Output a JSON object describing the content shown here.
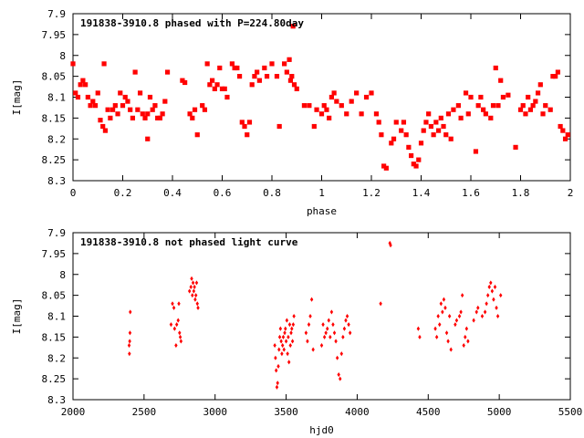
{
  "chart_data": [
    {
      "type": "scatter",
      "title": "191838-3910.8 phased with P=224.80day",
      "xlabel": "phase",
      "ylabel": "I[mag]",
      "xlim": [
        0,
        2
      ],
      "ylim": [
        7.9,
        8.3
      ],
      "y_inverted": true,
      "xticks": [
        "0",
        "0.2",
        "0.4",
        "0.6",
        "0.8",
        "1",
        "1.2",
        "1.4",
        "1.6",
        "1.8",
        "2"
      ],
      "yticks": [
        "7.9",
        "7.95",
        "8",
        "8.05",
        "8.1",
        "8.15",
        "8.2",
        "8.25",
        "8.3"
      ],
      "marker_color": "#ff0000",
      "grid": false,
      "points": [
        [
          0.0,
          8.02
        ],
        [
          0.01,
          8.09
        ],
        [
          0.02,
          8.1
        ],
        [
          0.03,
          8.07
        ],
        [
          0.04,
          8.06
        ],
        [
          0.05,
          8.07
        ],
        [
          0.06,
          8.1
        ],
        [
          0.07,
          8.12
        ],
        [
          0.08,
          8.11
        ],
        [
          0.09,
          8.12
        ],
        [
          0.1,
          8.09
        ],
        [
          0.11,
          8.155
        ],
        [
          0.12,
          8.17
        ],
        [
          0.125,
          8.02
        ],
        [
          0.13,
          8.18
        ],
        [
          0.14,
          8.13
        ],
        [
          0.15,
          8.15
        ],
        [
          0.16,
          8.13
        ],
        [
          0.17,
          8.12
        ],
        [
          0.18,
          8.14
        ],
        [
          0.19,
          8.09
        ],
        [
          0.2,
          8.12
        ],
        [
          0.21,
          8.1
        ],
        [
          0.22,
          8.11
        ],
        [
          0.23,
          8.13
        ],
        [
          0.24,
          8.15
        ],
        [
          0.25,
          8.04
        ],
        [
          0.26,
          8.13
        ],
        [
          0.27,
          8.09
        ],
        [
          0.28,
          8.14
        ],
        [
          0.29,
          8.15
        ],
        [
          0.3,
          8.14
        ],
        [
          0.3,
          8.2
        ],
        [
          0.31,
          8.1
        ],
        [
          0.32,
          8.13
        ],
        [
          0.33,
          8.12
        ],
        [
          0.34,
          8.15
        ],
        [
          0.35,
          8.15
        ],
        [
          0.36,
          8.14
        ],
        [
          0.37,
          8.11
        ],
        [
          0.38,
          8.04
        ],
        [
          0.44,
          8.06
        ],
        [
          0.45,
          8.065
        ],
        [
          0.47,
          8.14
        ],
        [
          0.48,
          8.15
        ],
        [
          0.49,
          8.13
        ],
        [
          0.5,
          8.19
        ],
        [
          0.52,
          8.12
        ],
        [
          0.53,
          8.13
        ],
        [
          0.54,
          8.02
        ],
        [
          0.55,
          8.07
        ],
        [
          0.56,
          8.06
        ],
        [
          0.57,
          8.08
        ],
        [
          0.58,
          8.07
        ],
        [
          0.59,
          8.03
        ],
        [
          0.6,
          8.08
        ],
        [
          0.61,
          8.08
        ],
        [
          0.62,
          8.1
        ],
        [
          0.64,
          8.02
        ],
        [
          0.65,
          8.03
        ],
        [
          0.66,
          8.03
        ],
        [
          0.67,
          8.05
        ],
        [
          0.68,
          8.16
        ],
        [
          0.69,
          8.17
        ],
        [
          0.7,
          8.19
        ],
        [
          0.71,
          8.16
        ],
        [
          0.72,
          8.07
        ],
        [
          0.73,
          8.05
        ],
        [
          0.74,
          8.04
        ],
        [
          0.75,
          8.06
        ],
        [
          0.77,
          8.03
        ],
        [
          0.78,
          8.05
        ],
        [
          0.8,
          8.02
        ],
        [
          0.82,
          8.05
        ],
        [
          0.83,
          8.17
        ],
        [
          0.85,
          8.02
        ],
        [
          0.86,
          8.04
        ],
        [
          0.87,
          8.01
        ],
        [
          0.875,
          8.06
        ],
        [
          0.88,
          8.05
        ],
        [
          0.885,
          7.93
        ],
        [
          0.89,
          8.07
        ],
        [
          0.9,
          8.08
        ],
        [
          0.93,
          8.12
        ],
        [
          0.95,
          8.12
        ],
        [
          0.97,
          8.17
        ],
        [
          0.98,
          8.13
        ],
        [
          1.0,
          8.14
        ],
        [
          1.01,
          8.12
        ],
        [
          1.02,
          8.13
        ],
        [
          1.03,
          8.15
        ],
        [
          1.04,
          8.1
        ],
        [
          1.05,
          8.09
        ],
        [
          1.06,
          8.11
        ],
        [
          1.08,
          8.12
        ],
        [
          1.1,
          8.14
        ],
        [
          1.12,
          8.11
        ],
        [
          1.14,
          8.09
        ],
        [
          1.16,
          8.14
        ],
        [
          1.18,
          8.1
        ],
        [
          1.2,
          8.09
        ],
        [
          1.22,
          8.14
        ],
        [
          1.23,
          8.16
        ],
        [
          1.24,
          8.19
        ],
        [
          1.25,
          8.265
        ],
        [
          1.26,
          8.27
        ],
        [
          1.28,
          8.21
        ],
        [
          1.29,
          8.2
        ],
        [
          1.3,
          8.16
        ],
        [
          1.32,
          8.18
        ],
        [
          1.33,
          8.16
        ],
        [
          1.34,
          8.19
        ],
        [
          1.35,
          8.22
        ],
        [
          1.36,
          8.24
        ],
        [
          1.37,
          8.26
        ],
        [
          1.38,
          8.265
        ],
        [
          1.39,
          8.25
        ],
        [
          1.4,
          8.21
        ],
        [
          1.41,
          8.18
        ],
        [
          1.42,
          8.16
        ],
        [
          1.43,
          8.14
        ],
        [
          1.44,
          8.17
        ],
        [
          1.45,
          8.19
        ],
        [
          1.46,
          8.16
        ],
        [
          1.47,
          8.18
        ],
        [
          1.48,
          8.15
        ],
        [
          1.49,
          8.17
        ],
        [
          1.5,
          8.19
        ],
        [
          1.51,
          8.14
        ],
        [
          1.52,
          8.2
        ],
        [
          1.53,
          8.13
        ],
        [
          1.55,
          8.12
        ],
        [
          1.56,
          8.15
        ],
        [
          1.58,
          8.09
        ],
        [
          1.59,
          8.14
        ],
        [
          1.6,
          8.1
        ],
        [
          1.62,
          8.23
        ],
        [
          1.63,
          8.12
        ],
        [
          1.64,
          8.1
        ],
        [
          1.65,
          8.13
        ],
        [
          1.66,
          8.14
        ],
        [
          1.68,
          8.15
        ],
        [
          1.69,
          8.12
        ],
        [
          1.7,
          8.03
        ],
        [
          1.71,
          8.12
        ],
        [
          1.72,
          8.06
        ],
        [
          1.73,
          8.1
        ],
        [
          1.75,
          8.095
        ],
        [
          1.78,
          8.22
        ],
        [
          1.8,
          8.13
        ],
        [
          1.81,
          8.12
        ],
        [
          1.82,
          8.14
        ],
        [
          1.83,
          8.1
        ],
        [
          1.84,
          8.13
        ],
        [
          1.85,
          8.12
        ],
        [
          1.86,
          8.11
        ],
        [
          1.87,
          8.09
        ],
        [
          1.88,
          8.07
        ],
        [
          1.89,
          8.14
        ],
        [
          1.9,
          8.12
        ],
        [
          1.92,
          8.13
        ],
        [
          1.93,
          8.05
        ],
        [
          1.94,
          8.05
        ],
        [
          1.95,
          8.04
        ],
        [
          1.96,
          8.17
        ],
        [
          1.97,
          8.18
        ],
        [
          1.98,
          8.2
        ],
        [
          1.99,
          8.19
        ]
      ]
    },
    {
      "type": "scatter",
      "title": "191838-3910.8 not phased light curve",
      "xlabel": "hjd0",
      "ylabel": "I[mag]",
      "xlim": [
        2000,
        5500
      ],
      "ylim": [
        7.9,
        8.3
      ],
      "y_inverted": true,
      "xticks": [
        "2000",
        "2500",
        "3000",
        "3500",
        "4000",
        "4500",
        "5000",
        "5500"
      ],
      "yticks": [
        "7.9",
        "7.95",
        "8",
        "8.05",
        "8.1",
        "8.15",
        "8.2",
        "8.25",
        "8.3"
      ],
      "marker_color": "#ff0000",
      "grid": false,
      "points": [
        [
          2395,
          8.17
        ],
        [
          2397,
          8.19
        ],
        [
          2399,
          8.16
        ],
        [
          2401,
          8.14
        ],
        [
          2403,
          8.09
        ],
        [
          2690,
          8.12
        ],
        [
          2700,
          8.07
        ],
        [
          2710,
          8.08
        ],
        [
          2715,
          8.13
        ],
        [
          2725,
          8.17
        ],
        [
          2730,
          8.12
        ],
        [
          2740,
          8.11
        ],
        [
          2745,
          8.07
        ],
        [
          2750,
          8.14
        ],
        [
          2755,
          8.15
        ],
        [
          2760,
          8.16
        ],
        [
          2820,
          8.04
        ],
        [
          2830,
          8.03
        ],
        [
          2835,
          8.01
        ],
        [
          2840,
          8.05
        ],
        [
          2845,
          8.02
        ],
        [
          2850,
          8.04
        ],
        [
          2855,
          8.03
        ],
        [
          2860,
          8.06
        ],
        [
          2865,
          8.05
        ],
        [
          2870,
          8.02
        ],
        [
          2875,
          8.07
        ],
        [
          2880,
          8.08
        ],
        [
          3420,
          8.17
        ],
        [
          3425,
          8.2
        ],
        [
          3430,
          8.23
        ],
        [
          3435,
          8.27
        ],
        [
          3440,
          8.26
        ],
        [
          3445,
          8.22
        ],
        [
          3450,
          8.18
        ],
        [
          3455,
          8.15
        ],
        [
          3460,
          8.13
        ],
        [
          3465,
          8.16
        ],
        [
          3470,
          8.19
        ],
        [
          3475,
          8.17
        ],
        [
          3480,
          8.15
        ],
        [
          3485,
          8.18
        ],
        [
          3490,
          8.14
        ],
        [
          3495,
          8.13
        ],
        [
          3500,
          8.16
        ],
        [
          3505,
          8.11
        ],
        [
          3510,
          8.19
        ],
        [
          3515,
          8.15
        ],
        [
          3520,
          8.21
        ],
        [
          3525,
          8.12
        ],
        [
          3530,
          8.17
        ],
        [
          3535,
          8.14
        ],
        [
          3540,
          8.13
        ],
        [
          3545,
          8.16
        ],
        [
          3550,
          8.12
        ],
        [
          3555,
          8.1
        ],
        [
          3640,
          8.14
        ],
        [
          3650,
          8.16
        ],
        [
          3660,
          8.12
        ],
        [
          3670,
          8.1
        ],
        [
          3680,
          8.06
        ],
        [
          3690,
          8.18
        ],
        [
          3750,
          8.17
        ],
        [
          3760,
          8.12
        ],
        [
          3770,
          8.15
        ],
        [
          3780,
          8.14
        ],
        [
          3790,
          8.13
        ],
        [
          3800,
          8.11
        ],
        [
          3810,
          8.15
        ],
        [
          3820,
          8.09
        ],
        [
          3830,
          8.12
        ],
        [
          3840,
          8.14
        ],
        [
          3850,
          8.16
        ],
        [
          3860,
          8.2
        ],
        [
          3870,
          8.24
        ],
        [
          3880,
          8.25
        ],
        [
          3890,
          8.19
        ],
        [
          3900,
          8.15
        ],
        [
          3910,
          8.13
        ],
        [
          3920,
          8.11
        ],
        [
          3930,
          8.1
        ],
        [
          3940,
          8.12
        ],
        [
          3950,
          8.14
        ],
        [
          4165,
          8.07
        ],
        [
          4230,
          7.925
        ],
        [
          4235,
          7.93
        ],
        [
          4430,
          8.13
        ],
        [
          4440,
          8.15
        ],
        [
          4550,
          8.13
        ],
        [
          4560,
          8.15
        ],
        [
          4570,
          8.1
        ],
        [
          4580,
          8.12
        ],
        [
          4590,
          8.07
        ],
        [
          4600,
          8.09
        ],
        [
          4610,
          8.06
        ],
        [
          4620,
          8.08
        ],
        [
          4630,
          8.14
        ],
        [
          4640,
          8.16
        ],
        [
          4650,
          8.1
        ],
        [
          4660,
          8.18
        ],
        [
          4690,
          8.12
        ],
        [
          4700,
          8.11
        ],
        [
          4720,
          8.1
        ],
        [
          4730,
          8.09
        ],
        [
          4740,
          8.05
        ],
        [
          4750,
          8.17
        ],
        [
          4760,
          8.15
        ],
        [
          4770,
          8.13
        ],
        [
          4780,
          8.16
        ],
        [
          4820,
          8.11
        ],
        [
          4840,
          8.09
        ],
        [
          4850,
          8.08
        ],
        [
          4880,
          8.1
        ],
        [
          4900,
          8.09
        ],
        [
          4910,
          8.07
        ],
        [
          4920,
          8.05
        ],
        [
          4930,
          8.03
        ],
        [
          4940,
          8.02
        ],
        [
          4950,
          8.04
        ],
        [
          4960,
          8.06
        ],
        [
          4970,
          8.03
        ],
        [
          4980,
          8.08
        ],
        [
          4990,
          8.1
        ],
        [
          5010,
          8.05
        ]
      ]
    }
  ]
}
